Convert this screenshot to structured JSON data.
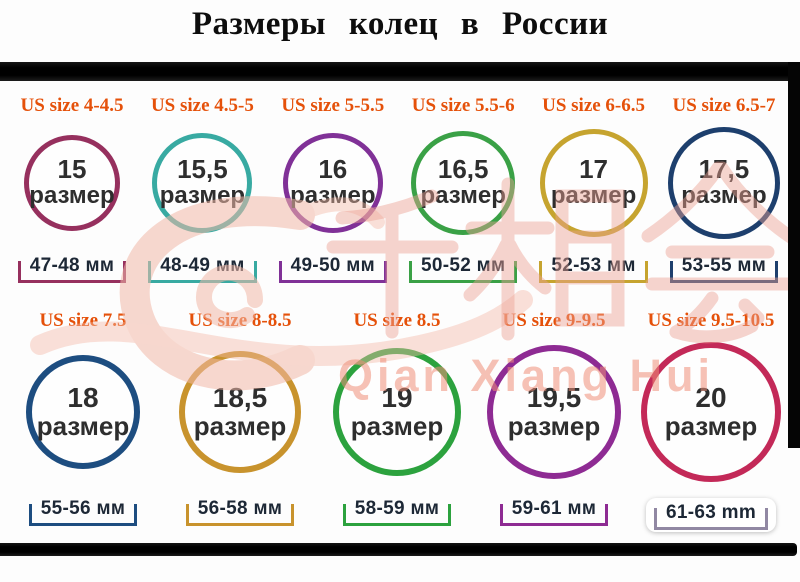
{
  "title": "Размеры колец в России",
  "ring_word": "размер",
  "watermark": {
    "pinyin": "Qian Xiang Hui",
    "cjk": "千相会",
    "color": "#ee8e78"
  },
  "palette": {
    "accent_orange": "#e5510a",
    "bar_black": "#0a0a0a",
    "mm_text": "#1d2836"
  },
  "rows": [
    {
      "items": [
        {
          "us": "US size 4-4.5",
          "ru_size": "15",
          "mm": "47-48 мм",
          "color": "#96305e",
          "diameter": 96
        },
        {
          "us": "US size 4.5-5",
          "ru_size": "15,5",
          "mm": "48-49 мм",
          "color": "#38aaa2",
          "diameter": 100
        },
        {
          "us": "US size 5-5.5",
          "ru_size": "16",
          "mm": "49-50 мм",
          "color": "#803197",
          "diameter": 100
        },
        {
          "us": "US size 5.5-6",
          "ru_size": "16,5",
          "mm": "50-52 мм",
          "color": "#3aa146",
          "diameter": 104
        },
        {
          "us": "US size 6-6.5",
          "ru_size": "17",
          "mm": "52-53 мм",
          "color": "#c6a42f",
          "diameter": 108
        },
        {
          "us": "US size 6.5-7",
          "ru_size": "17,5",
          "mm": "53-55 мм",
          "color": "#1d3f6d",
          "diameter": 112
        }
      ]
    },
    {
      "items": [
        {
          "us": "US size 7.5",
          "ru_size": "18",
          "mm": "55-56 мм",
          "color": "#1d4d80",
          "diameter": 114
        },
        {
          "us": "US size 8-8.5",
          "ru_size": "18,5",
          "mm": "56-58 мм",
          "color": "#c8932d",
          "diameter": 122
        },
        {
          "us": "US size 8.5",
          "ru_size": "19",
          "mm": "58-59 мм",
          "color": "#2ca23e",
          "diameter": 128
        },
        {
          "us": "US size 9-9.5",
          "ru_size": "19,5",
          "mm": "59-61 мм",
          "color": "#8e2b93",
          "diameter": 134
        },
        {
          "us": "US size 9.5-10.5",
          "ru_size": "20",
          "mm": "61-63 mm",
          "color": "#c32958",
          "diameter": 140,
          "mm_boxed": true,
          "accent": "#9188a3"
        }
      ]
    }
  ]
}
